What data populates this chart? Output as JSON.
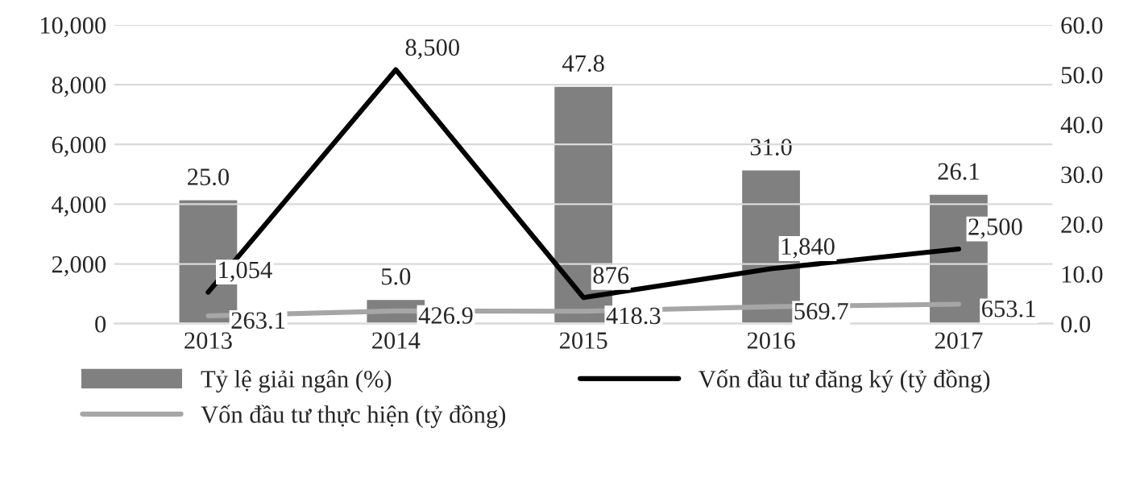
{
  "chart_data": {
    "type": "bar",
    "categories": [
      "2013",
      "2014",
      "2015",
      "2016",
      "2017"
    ],
    "series": [
      {
        "name": "Tỷ lệ giải ngân (%)",
        "axis": "y2",
        "color": "#808080",
        "values": [
          25.0,
          5.0,
          47.8,
          31.0,
          26.1
        ],
        "value_labels": [
          "25.0",
          "5.0",
          "47.8",
          "31.0",
          "26.1"
        ]
      },
      {
        "name": "Vốn đầu tư đăng ký (tỷ đồng)",
        "type": "line",
        "color": "#000000",
        "values": [
          1054,
          8500,
          876,
          1840,
          2500
        ],
        "value_labels": [
          "1,054",
          "8,500",
          "876",
          "1,840",
          "2,500"
        ]
      },
      {
        "name": "Vốn đầu tư thực hiện (tỷ đồng)",
        "type": "line",
        "color": "#a6a6a6",
        "values": [
          263.1,
          426.9,
          418.3,
          569.7,
          653.1
        ],
        "value_labels": [
          "263.1",
          "426.9",
          "418.3",
          "569.7",
          "653.1"
        ]
      }
    ],
    "ylim": [
      0,
      10000
    ],
    "yticks": [
      0,
      {
        "value": 2000,
        "label": "2,000"
      },
      {
        "value": 4000,
        "label": "4,000"
      },
      {
        "value": 6000,
        "label": "6,000"
      },
      {
        "value": 8000,
        "label": "8,000"
      },
      {
        "value": 10000,
        "label": "10,000"
      }
    ],
    "y2lim": [
      0,
      60
    ],
    "y2ticks": [
      {
        "value": 0,
        "label": "0.0"
      },
      {
        "value": 10,
        "label": "10.0"
      },
      {
        "value": 20,
        "label": "20.0"
      },
      {
        "value": 30,
        "label": "30.0"
      },
      {
        "value": 40,
        "label": "40.0"
      },
      {
        "value": 50,
        "label": "50.0"
      },
      {
        "value": 60,
        "label": "60.0"
      }
    ],
    "grid": "y",
    "legend": "bottom"
  }
}
